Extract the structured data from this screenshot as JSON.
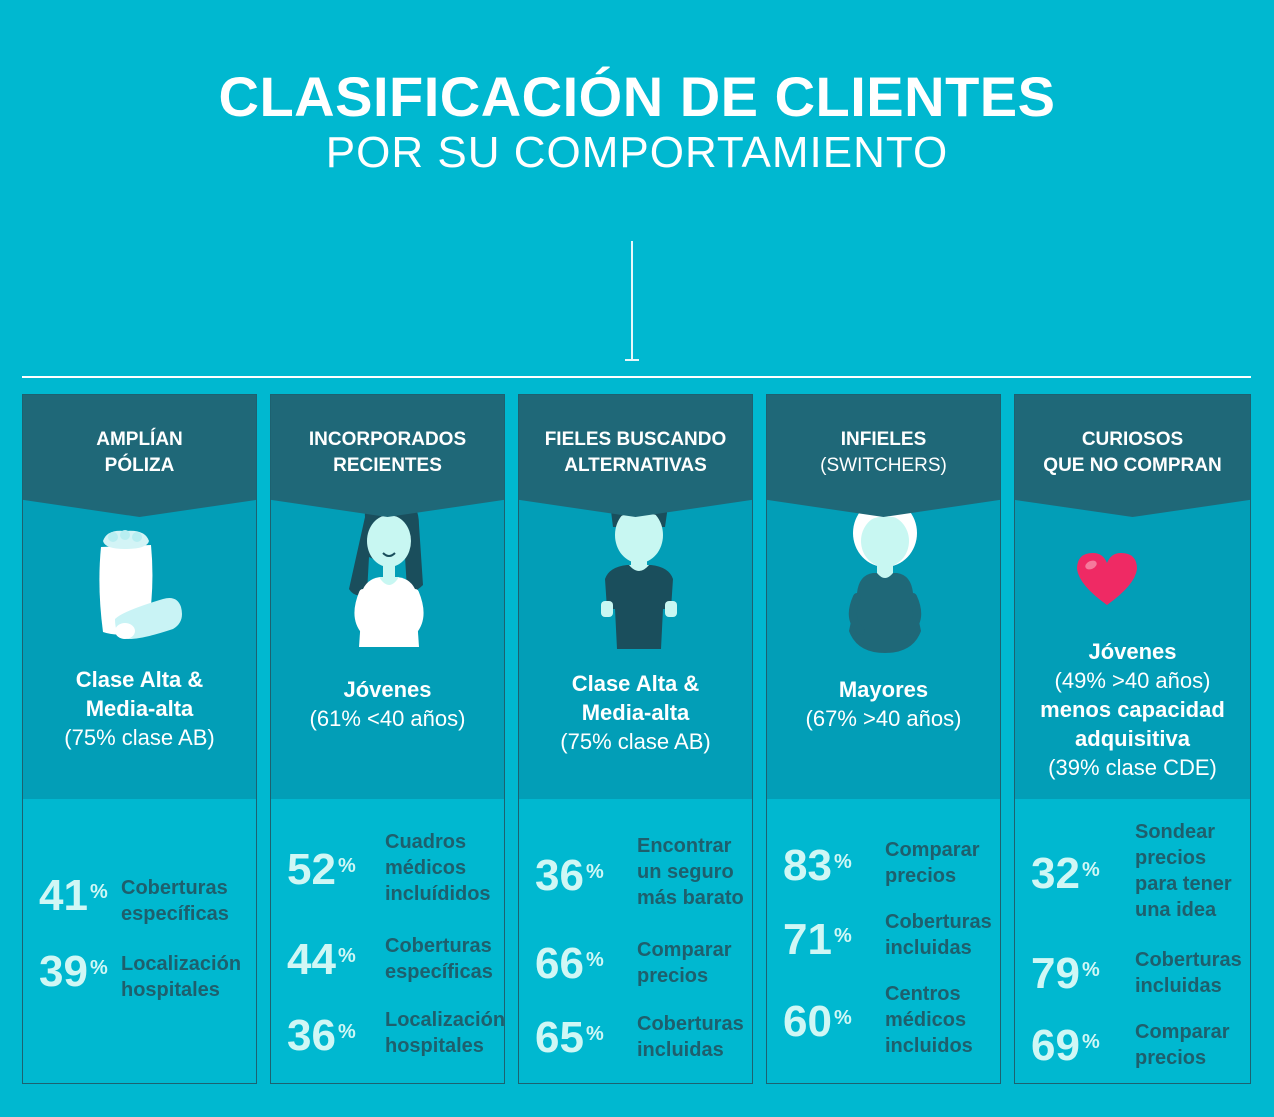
{
  "title": "CLASIFICACIÓN DE CLIENTES",
  "subtitle": "POR SU COMPORTAMIENTO",
  "colors": {
    "background": "#00b8d0",
    "header": "#1f6878",
    "mid": "#029eb7",
    "number": "#d0f7f5",
    "label": "#1e5f6d",
    "heart": "#ef2a64"
  },
  "columns": [
    {
      "title_line1": "AMPLÍAN",
      "title_line2": "PÓLIZA",
      "icon": "scroll-icon",
      "desc_line1": "Clase Alta &",
      "desc_line2": "Media-alta",
      "desc_line3": "(75% clase AB)",
      "stats": [
        {
          "num": "41",
          "pct": "%",
          "l1": "Coberturas",
          "l2": "específicas"
        },
        {
          "num": "39",
          "pct": "%",
          "l1": "Localización",
          "l2": "hospitales"
        }
      ]
    },
    {
      "title_line1": "INCORPORADOS",
      "title_line2": "RECIENTES",
      "icon": "young-woman-icon",
      "desc_line1": "Jóvenes",
      "desc_line2": "(61% <40 años)",
      "stats": [
        {
          "num": "52",
          "pct": "%",
          "l1": "Cuadros",
          "l2": "médicos",
          "l3": "incluídidos"
        },
        {
          "num": "44",
          "pct": "%",
          "l1": "Coberturas",
          "l2": "específicas"
        },
        {
          "num": "36",
          "pct": "%",
          "l1": "Localización",
          "l2": "hospitales"
        }
      ]
    },
    {
      "title_line1": "FIELES BUSCANDO",
      "title_line2": "ALTERNATIVAS",
      "icon": "man-icon",
      "desc_line1": "Clase Alta &",
      "desc_line2": "Media-alta",
      "desc_line3": "(75% clase AB)",
      "stats": [
        {
          "num": "36",
          "pct": "%",
          "l1": "Encontrar",
          "l2": "un seguro",
          "l3": "más barato"
        },
        {
          "num": "66",
          "pct": "%",
          "l1": "Comparar",
          "l2": "precios"
        },
        {
          "num": "65",
          "pct": "%",
          "l1": "Coberturas",
          "l2": "incluidas"
        }
      ]
    },
    {
      "title_line1": "INFIELES",
      "title_line2": "(SWITCHERS)",
      "icon": "old-woman-icon",
      "desc_line1": "Mayores",
      "desc_line2": "(67% >40 años)",
      "stats": [
        {
          "num": "83",
          "pct": "%",
          "l1": "Comparar",
          "l2": "precios"
        },
        {
          "num": "71",
          "pct": "%",
          "l1": "Coberturas",
          "l2": "incluidas"
        },
        {
          "num": "60",
          "pct": "%",
          "l1": "Centros",
          "l2": "médicos",
          "l3": "incluidos"
        }
      ]
    },
    {
      "title_line1": "CURIOSOS",
      "title_line2": "QUE NO COMPRAN",
      "icon": "heart-icon",
      "desc_line1": "Jóvenes",
      "desc_line2": "(49% >40 años)",
      "desc_line3": "menos capacidad",
      "desc_line4": "adquisitiva",
      "desc_line5": "(39% clase CDE)",
      "stats": [
        {
          "num": "32",
          "pct": "%",
          "l1": "Sondear",
          "l2": "precios",
          "l3": "para tener",
          "l4": "una idea"
        },
        {
          "num": "79",
          "pct": "%",
          "l1": "Coberturas",
          "l2": "incluidas"
        },
        {
          "num": "69",
          "pct": "%",
          "l1": "Comparar",
          "l2": "precios"
        }
      ]
    }
  ]
}
